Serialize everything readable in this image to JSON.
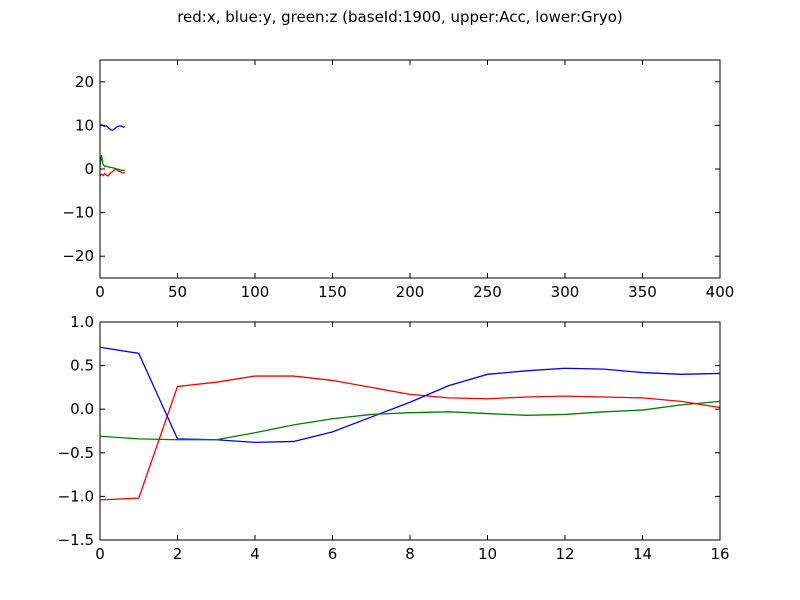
{
  "title": "red:x, blue:y, green:z (baseId:1900, upper:Acc, lower:Gryo)",
  "colors": {
    "x": "#ff0000",
    "y": "#0000ff",
    "z": "#008000"
  },
  "chart_data": [
    {
      "type": "line",
      "panel": "upper",
      "xlim": [
        0,
        400
      ],
      "ylim": [
        -25,
        25
      ],
      "xticks": [
        0,
        50,
        100,
        150,
        200,
        250,
        300,
        350,
        400
      ],
      "yticks": [
        -20,
        -10,
        0,
        10,
        20
      ],
      "x": [
        0,
        1,
        2,
        3,
        4,
        5,
        6,
        7,
        8,
        9,
        10,
        11,
        12,
        13,
        14,
        15,
        16
      ],
      "series": [
        {
          "color": "#ff0000",
          "values": [
            -1.6,
            -1.2,
            -1.5,
            -1.0,
            -1.4,
            -1.6,
            -1.3,
            -0.9,
            -0.6,
            -0.3,
            0.0,
            -0.2,
            -0.5,
            -0.6,
            -0.8,
            -0.8,
            -0.8
          ]
        },
        {
          "color": "#0000ff",
          "values": [
            10.0,
            10.1,
            10.0,
            9.8,
            9.9,
            9.6,
            9.3,
            9.0,
            8.9,
            9.1,
            9.4,
            9.7,
            9.8,
            9.9,
            9.8,
            9.6,
            9.7
          ]
        },
        {
          "color": "#008000",
          "values": [
            0.5,
            3.2,
            1.0,
            0.6,
            0.7,
            0.5,
            0.4,
            0.4,
            0.3,
            0.2,
            0.1,
            0.0,
            -0.1,
            -0.2,
            -0.3,
            -0.3,
            -0.3
          ]
        }
      ]
    },
    {
      "type": "line",
      "panel": "lower",
      "xlim": [
        0,
        16
      ],
      "ylim": [
        -1.5,
        1.0
      ],
      "xticks": [
        0,
        2,
        4,
        6,
        8,
        10,
        12,
        14,
        16
      ],
      "yticks": [
        -1.5,
        -1.0,
        -0.5,
        0.0,
        0.5,
        1.0
      ],
      "ytick_labels": [
        "−1.5",
        "−1.0",
        "−0.5",
        "0.0",
        "0.5",
        "1.0"
      ],
      "x": [
        0,
        1,
        2,
        3,
        4,
        5,
        6,
        7,
        8,
        9,
        10,
        11,
        12,
        13,
        14,
        15,
        16
      ],
      "series": [
        {
          "color": "#ff0000",
          "values": [
            -1.04,
            -1.02,
            0.26,
            0.31,
            0.38,
            0.38,
            0.33,
            0.25,
            0.17,
            0.13,
            0.12,
            0.14,
            0.15,
            0.14,
            0.13,
            0.09,
            0.02
          ]
        },
        {
          "color": "#0000ff",
          "values": [
            0.71,
            0.64,
            -0.34,
            -0.35,
            -0.38,
            -0.37,
            -0.26,
            -0.09,
            0.08,
            0.27,
            0.4,
            0.44,
            0.47,
            0.46,
            0.42,
            0.4,
            0.41
          ]
        },
        {
          "color": "#008000",
          "values": [
            -0.31,
            -0.34,
            -0.35,
            -0.35,
            -0.27,
            -0.18,
            -0.11,
            -0.06,
            -0.04,
            -0.03,
            -0.05,
            -0.07,
            -0.06,
            -0.03,
            -0.01,
            0.05,
            0.09
          ]
        }
      ]
    }
  ]
}
